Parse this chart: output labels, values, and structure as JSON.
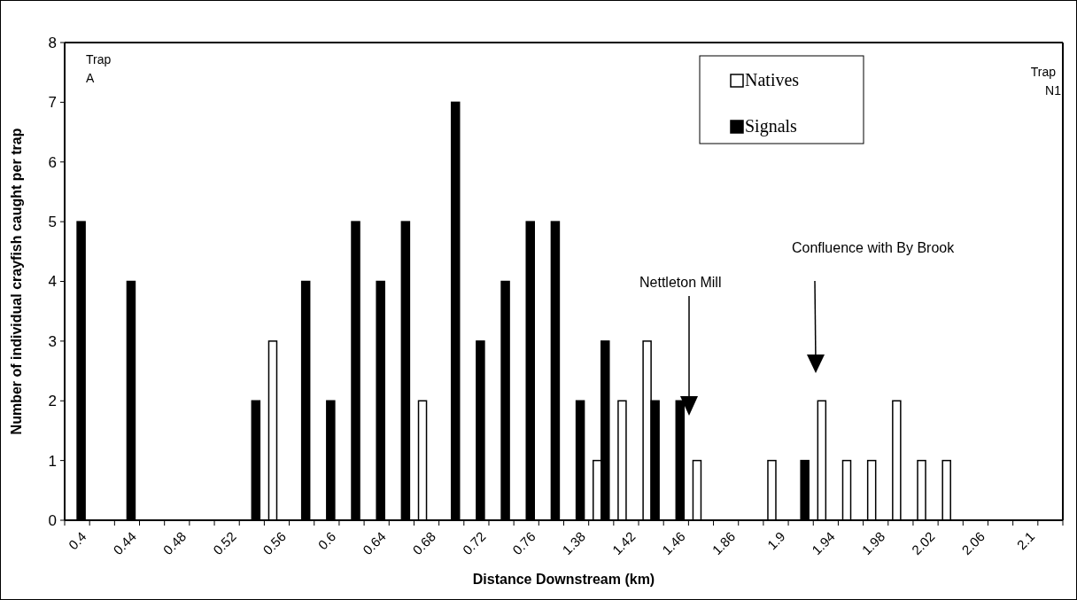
{
  "chart_data": {
    "type": "bar",
    "xlabel": "Distance Downstream (km)",
    "ylabel": "Number of individual crayfish caught per trap",
    "categories": [
      "0.4",
      null,
      "0.44",
      null,
      "0.48",
      null,
      "0.52",
      null,
      "0.56",
      null,
      "0.6",
      null,
      "0.64",
      null,
      "0.68",
      null,
      "0.72",
      null,
      "0.76",
      null,
      "1.38",
      null,
      "1.42",
      null,
      "1.46",
      null,
      "1.86",
      null,
      "1.9",
      null,
      "1.94",
      null,
      "1.98",
      null,
      "2.02",
      null,
      "2.06",
      null,
      "2.1",
      null
    ],
    "series": [
      {
        "name": "Natives",
        "color": "#ffffff",
        "values": [
          0,
          0,
          0,
          0,
          0,
          0,
          0,
          0,
          3,
          0,
          0,
          0,
          0,
          0,
          2,
          0,
          0,
          0,
          0,
          0,
          0,
          1,
          2,
          3,
          0,
          1,
          0,
          0,
          1,
          0,
          2,
          1,
          1,
          2,
          1,
          1,
          0,
          0,
          0,
          0
        ]
      },
      {
        "name": "Signals",
        "color": "#000000",
        "values": [
          5,
          0,
          4,
          0,
          0,
          0,
          0,
          2,
          0,
          4,
          2,
          5,
          4,
          5,
          0,
          7,
          3,
          4,
          5,
          5,
          2,
          3,
          0,
          2,
          2,
          0,
          0,
          0,
          0,
          1,
          0,
          0,
          0,
          0,
          0,
          0,
          0,
          0,
          0,
          0
        ]
      }
    ],
    "ylim": [
      0,
      8
    ],
    "yticks": [
      0,
      1,
      2,
      3,
      4,
      5,
      6,
      7,
      8
    ],
    "grid": false,
    "legend": "top right",
    "annotations": [
      "Trap A",
      "Trap N1",
      "Nettleton Mill",
      "Confluence with By Brook"
    ]
  }
}
